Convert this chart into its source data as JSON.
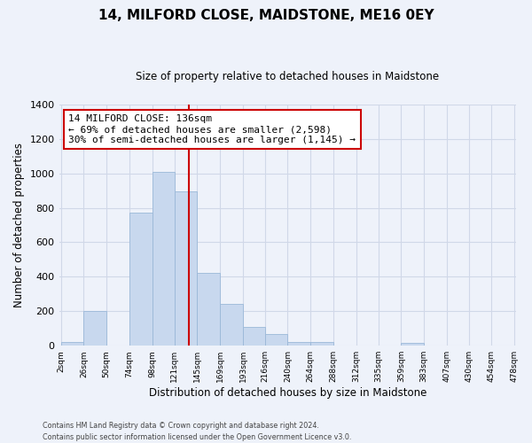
{
  "title": "14, MILFORD CLOSE, MAIDSTONE, ME16 0EY",
  "subtitle": "Size of property relative to detached houses in Maidstone",
  "xlabel": "Distribution of detached houses by size in Maidstone",
  "ylabel": "Number of detached properties",
  "bar_color": "#c8d8ee",
  "bar_edge_color": "#9ab8d8",
  "bin_edges": [
    2,
    26,
    50,
    74,
    98,
    121,
    145,
    169,
    193,
    216,
    240,
    264,
    288,
    312,
    335,
    359,
    383,
    407,
    430,
    454,
    478
  ],
  "bar_heights": [
    20,
    200,
    0,
    770,
    1010,
    895,
    420,
    245,
    110,
    70,
    20,
    20,
    0,
    0,
    0,
    15,
    0,
    0,
    0,
    0
  ],
  "tick_labels": [
    "2sqm",
    "26sqm",
    "50sqm",
    "74sqm",
    "98sqm",
    "121sqm",
    "145sqm",
    "169sqm",
    "193sqm",
    "216sqm",
    "240sqm",
    "264sqm",
    "288sqm",
    "312sqm",
    "335sqm",
    "359sqm",
    "383sqm",
    "407sqm",
    "430sqm",
    "454sqm",
    "478sqm"
  ],
  "ylim": [
    0,
    1400
  ],
  "yticks": [
    0,
    200,
    400,
    600,
    800,
    1000,
    1200,
    1400
  ],
  "vline_x": 136,
  "vline_color": "#cc0000",
  "annotation_title": "14 MILFORD CLOSE: 136sqm",
  "annotation_line1": "← 69% of detached houses are smaller (2,598)",
  "annotation_line2": "30% of semi-detached houses are larger (1,145) →",
  "annotation_box_color": "#ffffff",
  "annotation_box_edge": "#cc0000",
  "footnote1": "Contains HM Land Registry data © Crown copyright and database right 2024.",
  "footnote2": "Contains public sector information licensed under the Open Government Licence v3.0.",
  "bg_color": "#eef2fa",
  "grid_color": "#d0d8e8"
}
